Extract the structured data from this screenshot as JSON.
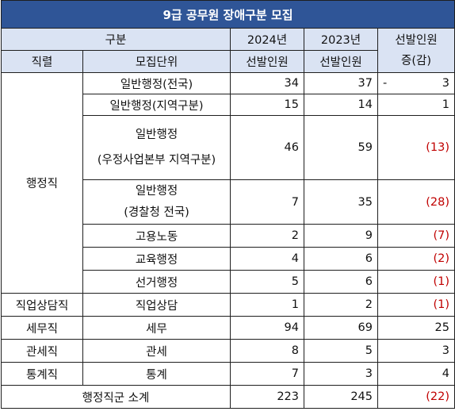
{
  "title": "9급 공무원 장애구분 모집",
  "header": {
    "group": "구분",
    "y2024": "2024년",
    "y2023": "2023년",
    "change_top": "선발인원",
    "category": "직렬",
    "unit": "모집단위",
    "sel2024": "선발인원",
    "sel2023": "선발인원",
    "change_bottom": "증(감)"
  },
  "admin_category": "행정직",
  "rows": [
    {
      "unit": "일반행정(전국)",
      "v2024": "34",
      "v2023": "37",
      "sign": "-",
      "change": "3"
    },
    {
      "unit": "일반행정(지역구분)",
      "v2024": "15",
      "v2023": "14",
      "change": "1"
    },
    {
      "unit_l1": "일반행정",
      "unit_l2": "(우정사업본부 지역구분)",
      "v2024": "46",
      "v2023": "59",
      "change": "(13)"
    },
    {
      "unit_l1": "일반행정",
      "unit_l2": "(경찰청 전국)",
      "v2024": "7",
      "v2023": "35",
      "change": "(28)"
    },
    {
      "unit": "고용노동",
      "v2024": "2",
      "v2023": "9",
      "change": "(7)"
    },
    {
      "unit": "교육행정",
      "v2024": "4",
      "v2023": "6",
      "change": "(2)"
    },
    {
      "unit": "선거행정",
      "v2024": "5",
      "v2023": "6",
      "change": "(1)"
    },
    {
      "category": "직업상담직",
      "unit": "직업상담",
      "v2024": "1",
      "v2023": "2",
      "change": "(1)"
    },
    {
      "category": "세무직",
      "unit": "세무",
      "v2024": "94",
      "v2023": "69",
      "change": "25"
    },
    {
      "category": "관세직",
      "unit": "관세",
      "v2024": "8",
      "v2023": "5",
      "change": "3"
    },
    {
      "category": "통계직",
      "unit": "통계",
      "v2024": "7",
      "v2023": "3",
      "change": "4"
    }
  ],
  "total": {
    "label": "행정직군 소계",
    "v2024": "223",
    "v2023": "245",
    "change": "(22)"
  },
  "colors": {
    "title_bg": "#2f5597",
    "header_bg": "#dae3f3",
    "negative": "#c00000"
  }
}
